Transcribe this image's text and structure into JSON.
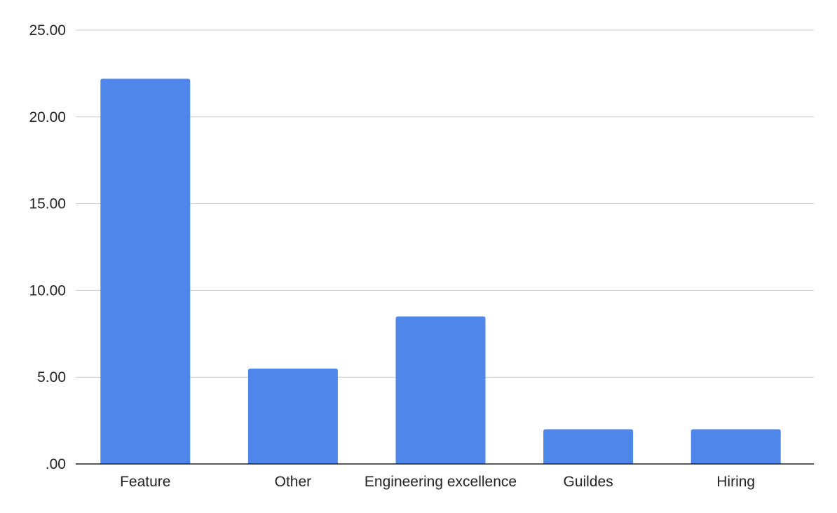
{
  "chart_data": {
    "type": "bar",
    "categories": [
      "Feature",
      "Other",
      "Engineering excellence",
      "Guildes",
      "Hiring"
    ],
    "values": [
      22.2,
      5.5,
      8.5,
      2.0,
      2.0
    ],
    "title": "",
    "xlabel": "",
    "ylabel": "",
    "ylim": [
      0,
      25
    ],
    "yticks": [
      0,
      5,
      10,
      15,
      20,
      25
    ],
    "ytick_labels": [
      ".00",
      "5.00",
      "10.00",
      "15.00",
      "20.00",
      "25.00"
    ],
    "grid": true,
    "legend": "none",
    "bar_color": "#4f86ea",
    "grid_color": "#cccccc",
    "axis_color": "#222222"
  }
}
